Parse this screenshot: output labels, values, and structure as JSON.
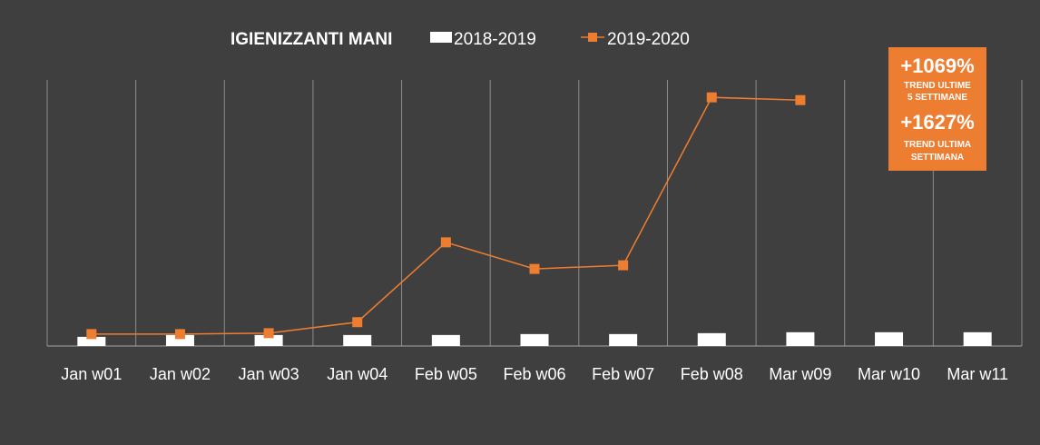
{
  "chart_data": {
    "type": "bar",
    "title": "IGIENIZZANTI MANI",
    "categories": [
      "Jan w01",
      "Jan w02",
      "Jan w03",
      "Jan w04",
      "Feb w05",
      "Feb w06",
      "Feb w07",
      "Feb w08",
      "Mar w09",
      "Mar w10",
      "Mar w11"
    ],
    "series": [
      {
        "name": "2018-2019",
        "kind": "bar",
        "color": "#ffffff",
        "values": [
          10,
          12,
          12,
          12,
          12,
          13,
          13,
          14,
          15,
          15,
          15
        ]
      },
      {
        "name": "2019-2020",
        "kind": "line",
        "color": "#ed7d31",
        "marker": "square",
        "values": [
          13,
          13,
          14,
          26,
          113,
          84,
          88,
          271,
          268,
          null,
          null
        ]
      }
    ],
    "ylim": [
      0,
      290
    ],
    "y_axis_visible": false,
    "grid": "vertical",
    "legend": "top",
    "xlabel": "",
    "ylabel": "",
    "callout": {
      "color": "#ed7d31",
      "value1": "+1069%",
      "label1_line1": "TREND ULTIME",
      "label1_line2": "5 SETTIMANE",
      "value2": "+1627%",
      "label2_line1": "TREND ULTIMA",
      "label2_line2": "SETTIMANA"
    }
  }
}
